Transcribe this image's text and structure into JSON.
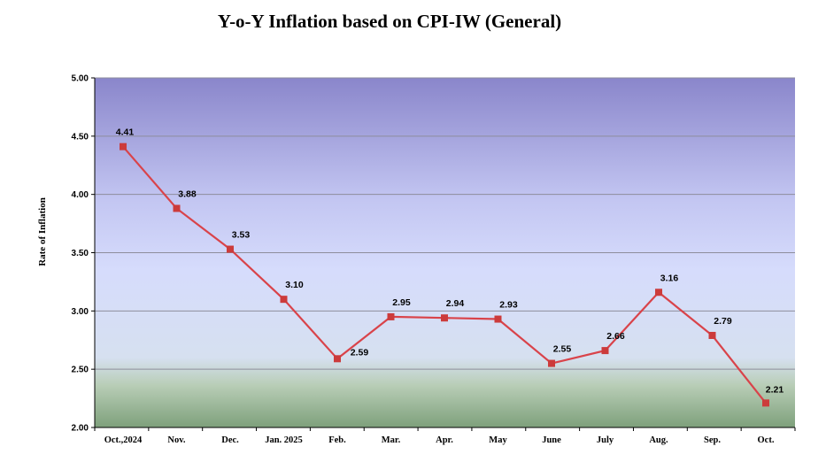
{
  "chart_data": {
    "type": "line",
    "title": "Y-o-Y Inflation based on CPI-IW (General)",
    "ylabel": "Rate of Inflation",
    "xlabel": "",
    "categories": [
      "Oct.,2024",
      "Nov.",
      "Dec.",
      "Jan. 2025",
      "Feb.",
      "Mar.",
      "Apr.",
      "May",
      "June",
      "July",
      "Aug.",
      "Sep.",
      "Oct."
    ],
    "series": [
      {
        "values": [
          4.41,
          3.88,
          3.53,
          3.1,
          2.59,
          2.95,
          2.94,
          2.93,
          2.55,
          2.66,
          3.16,
          2.79,
          2.21
        ],
        "labels": [
          "4.41",
          "3.88",
          "3.53",
          "3.10",
          "2.59",
          "2.95",
          "2.94",
          "2.93",
          "2.55",
          "2.66",
          "3.16",
          "2.79",
          "2.21"
        ]
      }
    ],
    "yticks": [
      "2.00",
      "2.50",
      "3.00",
      "3.50",
      "4.00",
      "4.50",
      "5.00"
    ],
    "ylim": [
      2.0,
      5.0
    ],
    "grid": true,
    "line_color": "#d9434a",
    "marker_color": "#cc3b3b",
    "background_gradient": [
      "#8b87cc",
      "#d4dafc",
      "#7fa07c"
    ]
  }
}
